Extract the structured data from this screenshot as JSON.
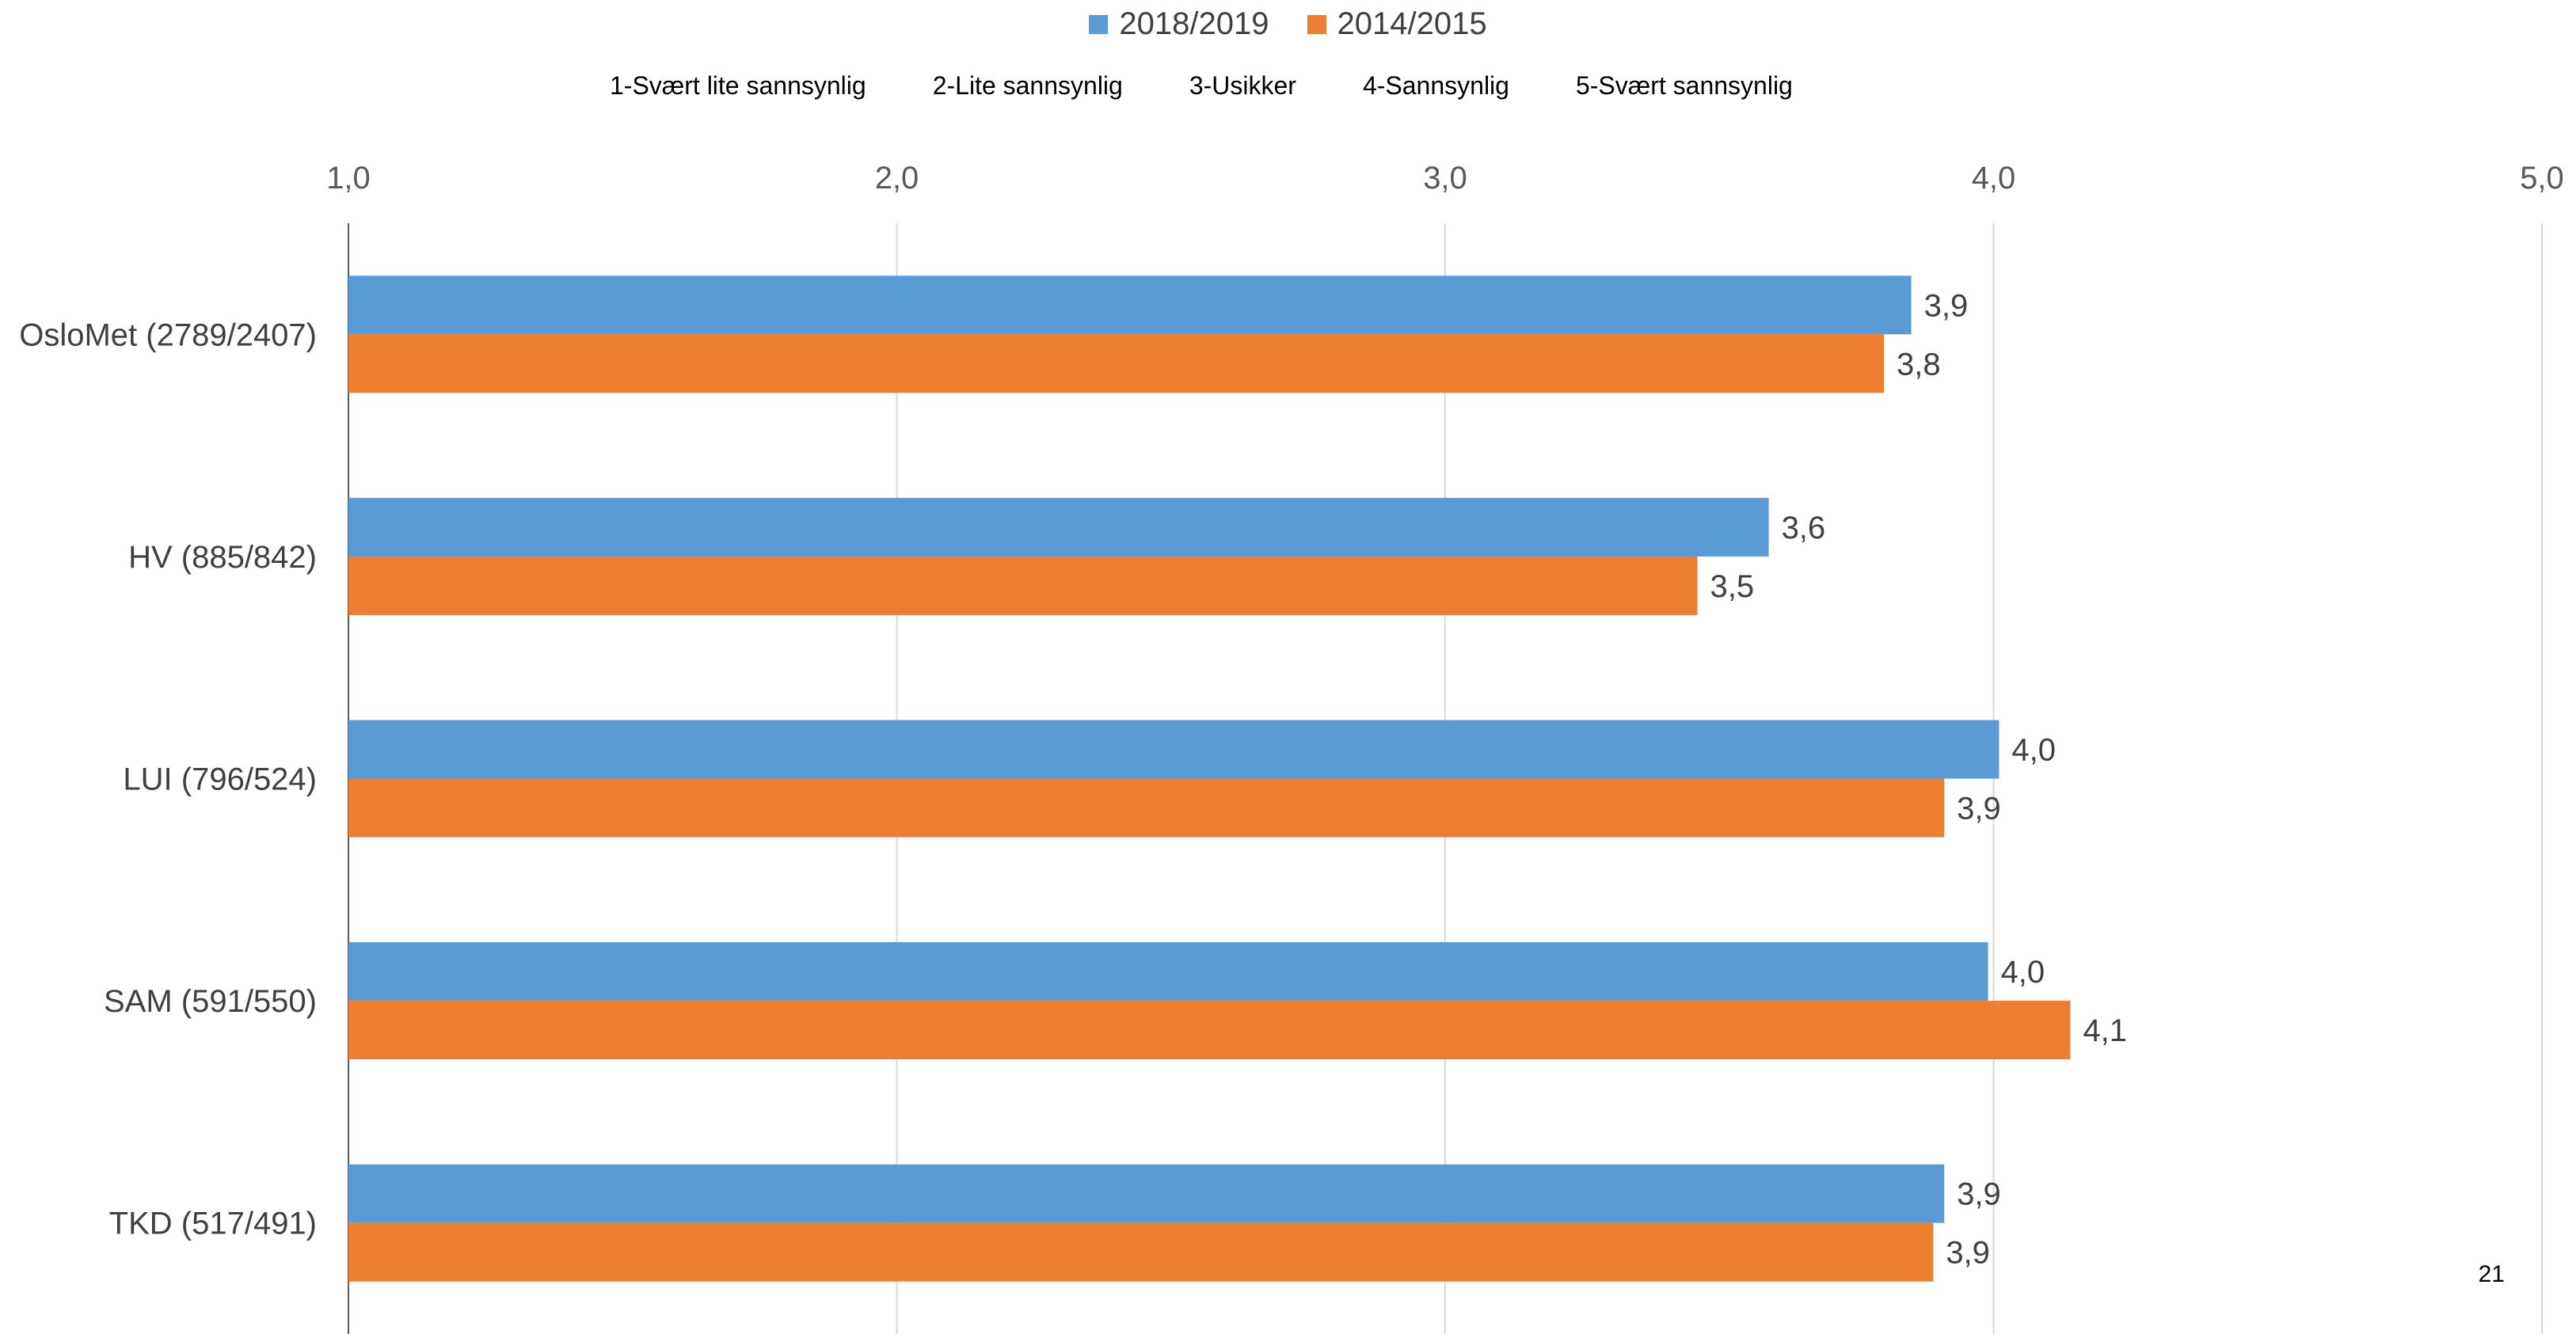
{
  "legend": {
    "series": [
      {
        "name": "2018/2019",
        "color": "#5B9BD5"
      },
      {
        "name": "2014/2015",
        "color": "#ED7D31"
      }
    ]
  },
  "scale_labels": [
    "1-Svært lite sannsynlig",
    "2-Lite sannsynlig",
    "3-Usikker",
    "4-Sannsynlig",
    "5-Svært sannsynlig"
  ],
  "page_number": "21",
  "chart_data": {
    "type": "bar",
    "orientation": "horizontal",
    "categories": [
      "OsloMet (2789/2407)",
      "HV (885/842)",
      "LUI (796/524)",
      "SAM (591/550)",
      "TKD (517/491)"
    ],
    "series": [
      {
        "name": "2018/2019",
        "color": "#5B9BD5",
        "values": [
          3.85,
          3.59,
          4.01,
          3.99,
          3.91
        ],
        "labels": [
          "3,9",
          "3,6",
          "4,0",
          "4,0",
          "3,9"
        ]
      },
      {
        "name": "2014/2015",
        "color": "#ED7D31",
        "values": [
          3.8,
          3.46,
          3.91,
          4.14,
          3.89
        ],
        "labels": [
          "3,8",
          "3,5",
          "3,9",
          "4,1",
          "3,9"
        ]
      }
    ],
    "xlim": [
      1,
      5
    ],
    "x_ticks": [
      "1,0",
      "2,0",
      "3,0",
      "4,0",
      "5,0"
    ],
    "x_tick_values": [
      1,
      2,
      3,
      4,
      5
    ],
    "grid": true,
    "legend_position": "top-center",
    "gridline_color": "#D9D9D9",
    "axis_color": "#595959"
  }
}
